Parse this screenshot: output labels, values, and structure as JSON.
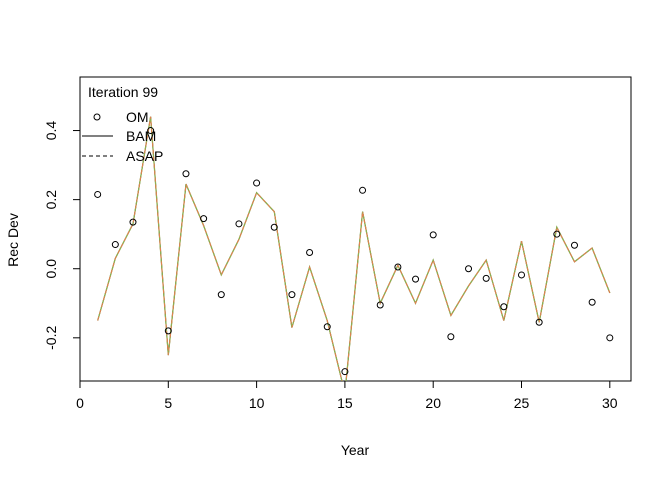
{
  "chart_data": {
    "type": "line",
    "title": "",
    "annotation": "Iteration 99",
    "xlabel": "Year",
    "ylabel": "Rec Dev",
    "xlim": [
      0,
      31.2
    ],
    "ylim": [
      -0.325,
      0.555
    ],
    "xticks": [
      0,
      5,
      10,
      15,
      20,
      25,
      30
    ],
    "yticks": [
      -0.2,
      0.0,
      0.2,
      0.4
    ],
    "ytick_labels": [
      "-0.2",
      "0.0",
      "0.2",
      "0.4"
    ],
    "grid": false,
    "legend_position": "top-left",
    "colors": {
      "om": "#000000",
      "bam": "#000000",
      "asap": "#8fb050",
      "asap_dash": "#e67e50"
    },
    "series": [
      {
        "name": "OM",
        "style": "points",
        "x": [
          1,
          2,
          3,
          4,
          5,
          6,
          7,
          8,
          9,
          10,
          11,
          12,
          13,
          14,
          15,
          16,
          17,
          18,
          19,
          20,
          21,
          22,
          23,
          24,
          25,
          26,
          27,
          28,
          29,
          30
        ],
        "y": [
          0.215,
          0.07,
          0.135,
          0.4,
          -0.18,
          0.275,
          0.145,
          -0.075,
          0.13,
          0.248,
          0.12,
          -0.075,
          0.047,
          -0.168,
          -0.298,
          0.227,
          -0.105,
          0.005,
          -0.03,
          0.098,
          -0.197,
          0.0,
          -0.028,
          -0.11,
          -0.018,
          -0.155,
          0.1,
          0.068,
          -0.097,
          -0.2
        ]
      },
      {
        "name": "BAM",
        "style": "solid",
        "x": [
          1,
          2,
          3,
          4,
          5,
          6,
          7,
          8,
          9,
          10,
          11,
          12,
          13,
          14,
          15,
          16,
          17,
          18,
          19,
          20,
          21,
          22,
          23,
          24,
          25,
          26,
          27,
          28,
          29,
          30
        ],
        "y": [
          -0.15,
          0.03,
          0.13,
          0.44,
          -0.25,
          0.245,
          0.125,
          -0.018,
          0.085,
          0.22,
          0.165,
          -0.17,
          0.005,
          -0.15,
          -0.36,
          0.165,
          -0.1,
          0.01,
          -0.1,
          0.025,
          -0.135,
          -0.05,
          0.025,
          -0.15,
          0.08,
          -0.155,
          0.12,
          0.02,
          0.06,
          -0.07
        ]
      },
      {
        "name": "ASAP",
        "style": "dashed",
        "x": [
          1,
          2,
          3,
          4,
          5,
          6,
          7,
          8,
          9,
          10,
          11,
          12,
          13,
          14,
          15,
          16,
          17,
          18,
          19,
          20,
          21,
          22,
          23,
          24,
          25,
          26,
          27,
          28,
          29,
          30
        ],
        "y": [
          -0.15,
          0.03,
          0.13,
          0.44,
          -0.25,
          0.245,
          0.125,
          -0.018,
          0.085,
          0.22,
          0.165,
          -0.17,
          0.005,
          -0.15,
          -0.36,
          0.165,
          -0.1,
          0.01,
          -0.1,
          0.025,
          -0.135,
          -0.05,
          0.025,
          -0.15,
          0.08,
          -0.155,
          0.12,
          0.02,
          0.06,
          -0.07
        ]
      }
    ]
  }
}
